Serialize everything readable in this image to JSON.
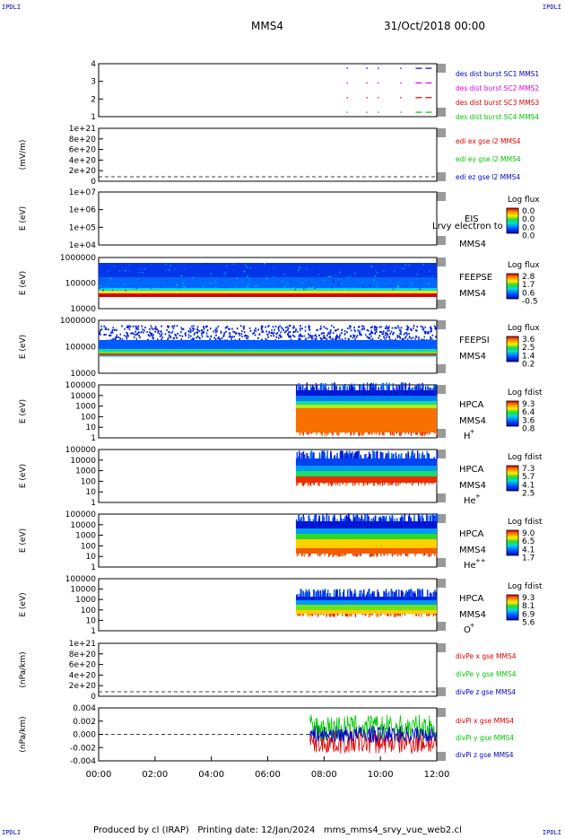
{
  "corner_label": "IPDLI",
  "header": {
    "mission": "MMS4",
    "date": "31/Oct/2018 00:00"
  },
  "footer": "Produced by cl (IRAP)   Printing date: 12/Jan/2024   mms_mms4_srvy_vue_web2.cl",
  "colors": {
    "ink": "#000000",
    "blue": "#0000c8",
    "green": "#00c800",
    "red": "#dc0000",
    "magenta": "#e000e0"
  },
  "chart_data": [
    {
      "id": "p1",
      "type": "scatter",
      "yticks": [
        "4",
        "3",
        "2",
        "1"
      ],
      "ylabel": "",
      "series": [
        {
          "name": "des dist burst SC1 MMS1",
          "color": "#0000c8",
          "level": 4
        },
        {
          "name": "des dist burst SC2 MMS2",
          "color": "#e000e0",
          "level": 3
        },
        {
          "name": "des dist burst SC3 MMS3",
          "color": "#dc0000",
          "level": 2
        },
        {
          "name": "des dist burst SC4 MMS4",
          "color": "#00c800",
          "level": 1
        }
      ],
      "x_hours": [
        8.8,
        9.5,
        9.9,
        10.7,
        11.25,
        11.6
      ]
    },
    {
      "id": "p2",
      "type": "line",
      "yticks": [
        "1e+21",
        "8e+20",
        "6e+20",
        "4e+20",
        "2e+20",
        "0"
      ],
      "ylabel": "(mV/m)",
      "series": [
        {
          "name": "edi ex gse l2 MMS4",
          "color": "#dc0000"
        },
        {
          "name": "edi ey gse l2 MMS4",
          "color": "#00c800"
        },
        {
          "name": "edi ez gse l2 MMS4",
          "color": "#0000c8"
        }
      ]
    },
    {
      "id": "p3",
      "type": "heatmap",
      "yticks": [
        "1e+07",
        "1e+06",
        "1e+05",
        "1e+04"
      ],
      "ylabel": "E (eV)",
      "label": "EIS",
      "sublabel": "MMS4",
      "overlay": "Lrvy electron to",
      "cbar_title": "Log flux",
      "cbar_ticks": [
        "0.0",
        "0.0",
        "0.0",
        "0.0"
      ]
    },
    {
      "id": "p4",
      "type": "heatmap",
      "yticks": [
        "1000000",
        "100000",
        "10000"
      ],
      "ylabel": "E (eV)",
      "label": "FEEPSE",
      "sublabel": "MMS4",
      "cbar_title": "Log flux",
      "cbar_ticks": [
        "2.8",
        "1.7",
        "0.6",
        "-0.5"
      ],
      "t_start_hours": 0.0,
      "t_end_hours": 12.0
    },
    {
      "id": "p5",
      "type": "heatmap",
      "yticks": [
        "1000000",
        "100000",
        "10000"
      ],
      "ylabel": "E (eV)",
      "label": "FEEPSI",
      "sublabel": "MMS4",
      "cbar_title": "Log flux",
      "cbar_ticks": [
        "3.6",
        "2.5",
        "1.4",
        "0.2"
      ],
      "t_start_hours": 0.0,
      "t_end_hours": 12.0
    },
    {
      "id": "p6",
      "type": "heatmap",
      "yticks": [
        "100000",
        "10000",
        "1000",
        "100",
        "10",
        "1"
      ],
      "ylabel": "E (eV)",
      "label": "HPCA",
      "sublabel": "MMS4",
      "species": "H",
      "species_sup": "+",
      "cbar_title": "Log fdist",
      "cbar_ticks": [
        "9.3",
        "6.4",
        "3.6",
        "0.8"
      ],
      "t_start_hours": 7.0,
      "t_end_hours": 12.0
    },
    {
      "id": "p7",
      "type": "heatmap",
      "yticks": [
        "100000",
        "10000",
        "1000",
        "100",
        "10",
        "1"
      ],
      "ylabel": "E (eV)",
      "label": "HPCA",
      "sublabel": "MMS4",
      "species": "He",
      "species_sup": "+",
      "cbar_title": "Log fdist",
      "cbar_ticks": [
        "7.3",
        "5.7",
        "4.1",
        "2.5"
      ],
      "t_start_hours": 7.0,
      "t_end_hours": 12.0
    },
    {
      "id": "p8",
      "type": "heatmap",
      "yticks": [
        "100000",
        "10000",
        "1000",
        "100",
        "10",
        "1"
      ],
      "ylabel": "E (eV)",
      "label": "HPCA",
      "sublabel": "MMS4",
      "species": "He",
      "species_sup": "++",
      "cbar_title": "Log fdist",
      "cbar_ticks": [
        "9.0",
        "6.5",
        "4.1",
        "1.7"
      ],
      "t_start_hours": 7.0,
      "t_end_hours": 12.0
    },
    {
      "id": "p9",
      "type": "heatmap",
      "yticks": [
        "100000",
        "10000",
        "1000",
        "100",
        "10",
        "1"
      ],
      "ylabel": "E (eV)",
      "label": "HPCA",
      "sublabel": "MMS4",
      "species": "O",
      "species_sup": "+",
      "cbar_title": "Log fdist",
      "cbar_ticks": [
        "9.3",
        "8.1",
        "6.9",
        "5.6"
      ],
      "t_start_hours": 7.0,
      "t_end_hours": 12.0
    },
    {
      "id": "p10",
      "type": "line",
      "yticks": [
        "1e+21",
        "8e+20",
        "6e+20",
        "4e+20",
        "2e+20",
        "0"
      ],
      "ylabel": "(nPa/km)",
      "series": [
        {
          "name": "divPe x gse MMS4",
          "color": "#dc0000"
        },
        {
          "name": "divPe y gse MMS4",
          "color": "#00c800"
        },
        {
          "name": "divPe z gse MMS4",
          "color": "#0000c8"
        }
      ]
    },
    {
      "id": "p11",
      "type": "line",
      "yticks": [
        "0.004",
        "0.002",
        "0.000",
        "-0.002",
        "-0.004"
      ],
      "ylabel": "(nPa/km)",
      "ylim": [
        -0.005,
        0.005
      ],
      "series": [
        {
          "name": "divPi x gse MMS4",
          "color": "#dc0000"
        },
        {
          "name": "divPi y gse MMS4",
          "color": "#00c800"
        },
        {
          "name": "divPi z gse MMS4",
          "color": "#0000c8"
        }
      ],
      "t_start_hours": 7.5,
      "t_end_hours": 12.0
    }
  ],
  "xaxis": {
    "ticks": [
      "00:00",
      "02:00",
      "04:00",
      "06:00",
      "08:00",
      "10:00",
      "12:00"
    ],
    "range_hours": [
      0,
      12
    ]
  }
}
